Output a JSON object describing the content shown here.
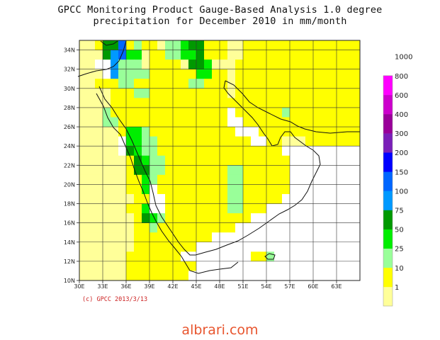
{
  "title_line1": "GPCC Monitoring Product Gauge-Based Analysis 1.0 degree",
  "title_line2": "precipitation for December  2010 in mm/month",
  "copyright": "(c) GPCC 2013/3/13",
  "watermark": "albrari.com",
  "x_ticks": [
    "30E",
    "33E",
    "36E",
    "39E",
    "42E",
    "45E",
    "48E",
    "51E",
    "54E",
    "57E",
    "60E",
    "63E"
  ],
  "y_ticks": [
    "34N",
    "32N",
    "30N",
    "28N",
    "26N",
    "24N",
    "22N",
    "20N",
    "18N",
    "16N",
    "14N",
    "12N",
    "10N"
  ],
  "legend": {
    "colors": [
      "#ffff99",
      "#ffff00",
      "#99ff99",
      "#00ee00",
      "#009900",
      "#0099ff",
      "#0066ff",
      "#0000ff",
      "#7a1fb8",
      "#990099",
      "#cc00cc",
      "#ff00ff"
    ],
    "labels": [
      "1",
      "10",
      "25",
      "50",
      "75",
      "100",
      "150",
      "200",
      "300",
      "400",
      "600",
      "800",
      "1000"
    ]
  },
  "palette": {
    "W": "#ffffff",
    "P": "#ffff99",
    "Y": "#ffff00",
    "L": "#99ff99",
    "G": "#00ee00",
    "D": "#009900",
    "C": "#0099ff",
    "B": "#0066ff"
  },
  "grid": {
    "lon_start": 30,
    "lat_top": 35,
    "cols": 36,
    "rows": 25,
    "rows_data": [
      "PPYDDBYLYYPLLGDDYYYPPYYYYYYYYYYYYYYY",
      "PPPDCBGGPYYLLGGDYYYPPYYYYYYYYYYYYYYY",
      "PPWWCLLLPYYYYPDDGPPPYYYYYYYYYYYYYYYY",
      "PPPWCLLLLYYYYYYGGYYPYYYYYYYYYYYYYYYY",
      "PPYYYLLYYYYYYYLLYYYPYYYYYYYYYYYYYYYY",
      "PPPPYYYLLYYYYYYYYYYPYYYYYYYYYYYYYYYY",
      "PPPPYYYYYYYYYYYYYYYYYYYYYYYYYYYYYYYY",
      "PPPLYYYYYYYYYYYYYYYWYYYYYYLYYYYYYYYY",
      "PPPLLYYYYYYYYYYYYYYWWYYYYYYYYYYYYYYY",
      "PPPPPYGGLYYYYYYYYYYYWWWYYYYYYYYYYYYY",
      "PPPPPWGGLLYYYYYYYYYYYYWWYYPPPYYYYYYY",
      "PPPPPWDGLLYYYYYYYYYYYYYYYYWWWWWWWWWW",
      "PPPPPPYDGLLYYYYYYYYYYYYYYYYWWWWWWWWW",
      "PPPPPPYDDLLYYYYYYYYLLYYYYYYWWWWWWWWW",
      "PPPPPPYYGLYYYYYYYYYLLYYYYYYWWWWWWWWW",
      "PPPPPPYYGWYYYYYYYYYLLYYYYYYWWWWWWWWW",
      "PPPPPPPYYWWYYYYYYYYLLYYYYYWWWWWWWWWW",
      "PPPPPPYYGWWYYYYYYYYLLYYYWWWWWWWWWWWW",
      "PPPPPPPYDGLYYYYYYYYYYYWWWWWWWWWWWWWW",
      "PPPPPPPYYLYYYYYYYYYYWWWWWWWWWWWWWWWW",
      "PPPPPPPYYYYYYYYYYWWWWWWWWWWWWWWWWWWW",
      "PPPPPPPYYYYYYYYWWWWWWWWWWWWWWWWWWWWW",
      "PPPPPPYYYYYYYWWWWWWWWWYYLWWWWWWWWWWW",
      "PPPPPPYYYYYYYYYWWWWWWWWWWWWWWWWWWWWW",
      "PPPPPPYYYYYYYYWWWWWWWWWWWWWWWWWWWWWW"
    ]
  }
}
